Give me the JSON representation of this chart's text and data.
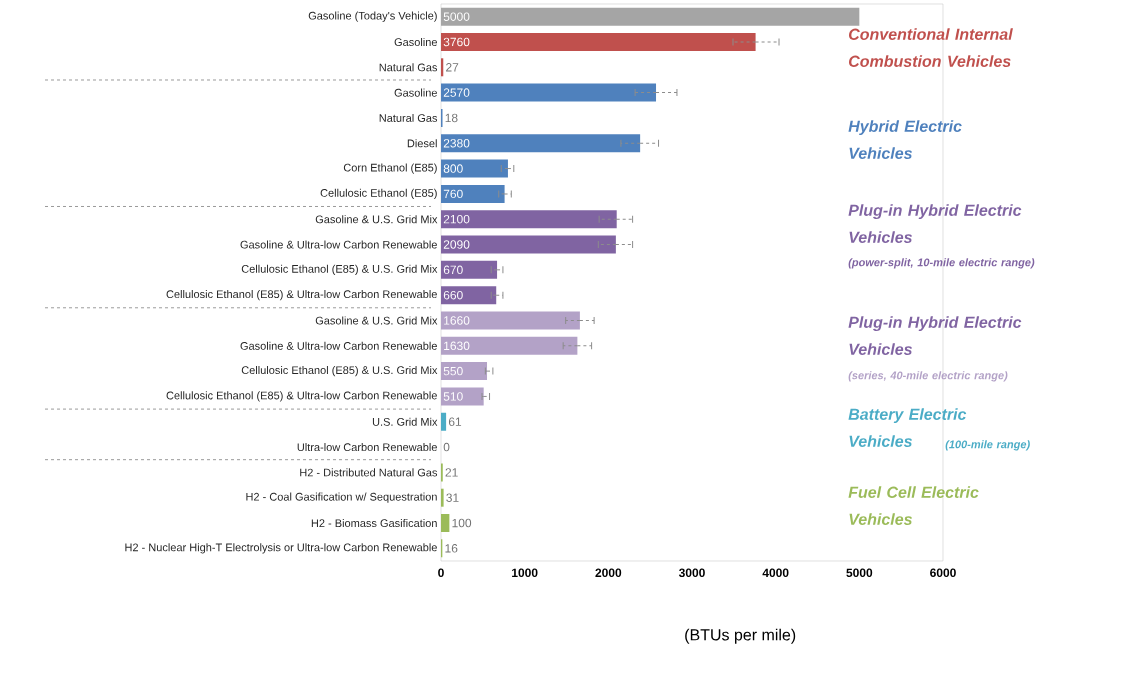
{
  "chart_data": {
    "type": "bar",
    "orientation": "horizontal",
    "xlabel": "(BTUs per mile)",
    "categories": [
      "Gasoline (Today's Vehicle)",
      "Gasoline",
      "Natural Gas",
      "Gasoline",
      "Natural Gas",
      "Diesel",
      "Corn Ethanol (E85)",
      "Cellulosic Ethanol (E85)",
      "Gasoline & U.S. Grid Mix",
      "Gasoline & Ultra-low Carbon Renewable",
      "Cellulosic Ethanol (E85) & U.S. Grid Mix",
      "Cellulosic Ethanol (E85) & Ultra-low Carbon Renewable",
      "Gasoline & U.S. Grid Mix",
      "Gasoline & Ultra-low Carbon Renewable",
      "Cellulosic Ethanol (E85) & U.S. Grid Mix",
      "Cellulosic Ethanol (E85) & Ultra-low Carbon Renewable",
      "U.S. Grid Mix",
      "Ultra-low Carbon Renewable",
      "H2 - Distributed Natural Gas",
      "H2 - Coal Gasification w/ Sequestration",
      "H2 - Biomass Gasification",
      "H2 - Nuclear High-T Electrolysis or Ultra-low Carbon Renewable"
    ],
    "values": [
      5000,
      3760,
      27,
      2570,
      18,
      2380,
      800,
      760,
      2100,
      2090,
      670,
      660,
      1660,
      1630,
      550,
      510,
      61,
      0,
      21,
      31,
      100,
      16
    ],
    "errors": [
      null,
      [
        3490,
        4040
      ],
      null,
      [
        2320,
        2820
      ],
      null,
      [
        2150,
        2600
      ],
      [
        720,
        870
      ],
      [
        690,
        840
      ],
      [
        1890,
        2290
      ],
      [
        1880,
        2290
      ],
      [
        600,
        740
      ],
      [
        600,
        740
      ],
      [
        1490,
        1830
      ],
      [
        1460,
        1800
      ],
      [
        530,
        620
      ],
      [
        490,
        580
      ],
      null,
      null,
      null,
      null,
      null,
      null
    ],
    "colors": [
      "#a5a5a5",
      "#c0504d",
      "#c0504d",
      "#4f81bd",
      "#4f81bd",
      "#4f81bd",
      "#4f81bd",
      "#4f81bd",
      "#8064a2",
      "#8064a2",
      "#8064a2",
      "#8064a2",
      "#b3a2c7",
      "#b3a2c7",
      "#b3a2c7",
      "#b3a2c7",
      "#4bacc6",
      "#4bacc6",
      "#9bbb59",
      "#9bbb59",
      "#9bbb59",
      "#9bbb59"
    ],
    "data_labels": true,
    "xlim": [
      0,
      6000
    ],
    "xticks": [
      0,
      1000,
      2000,
      3000,
      4000,
      5000,
      6000
    ],
    "annotations": [
      "Conventional Internal Combustion Vehicles",
      "Hybrid Electric Vehicles",
      "Plug-in Hybrid Electric Vehicles",
      "(power-split, 10-mile electric range)",
      "Plug-in Hybrid Electric Vehicles",
      "(series, 40-mile electric range)",
      "Battery Electric Vehicles",
      "(100-mile range)",
      "Fuel Cell Electric Vehicles"
    ]
  }
}
